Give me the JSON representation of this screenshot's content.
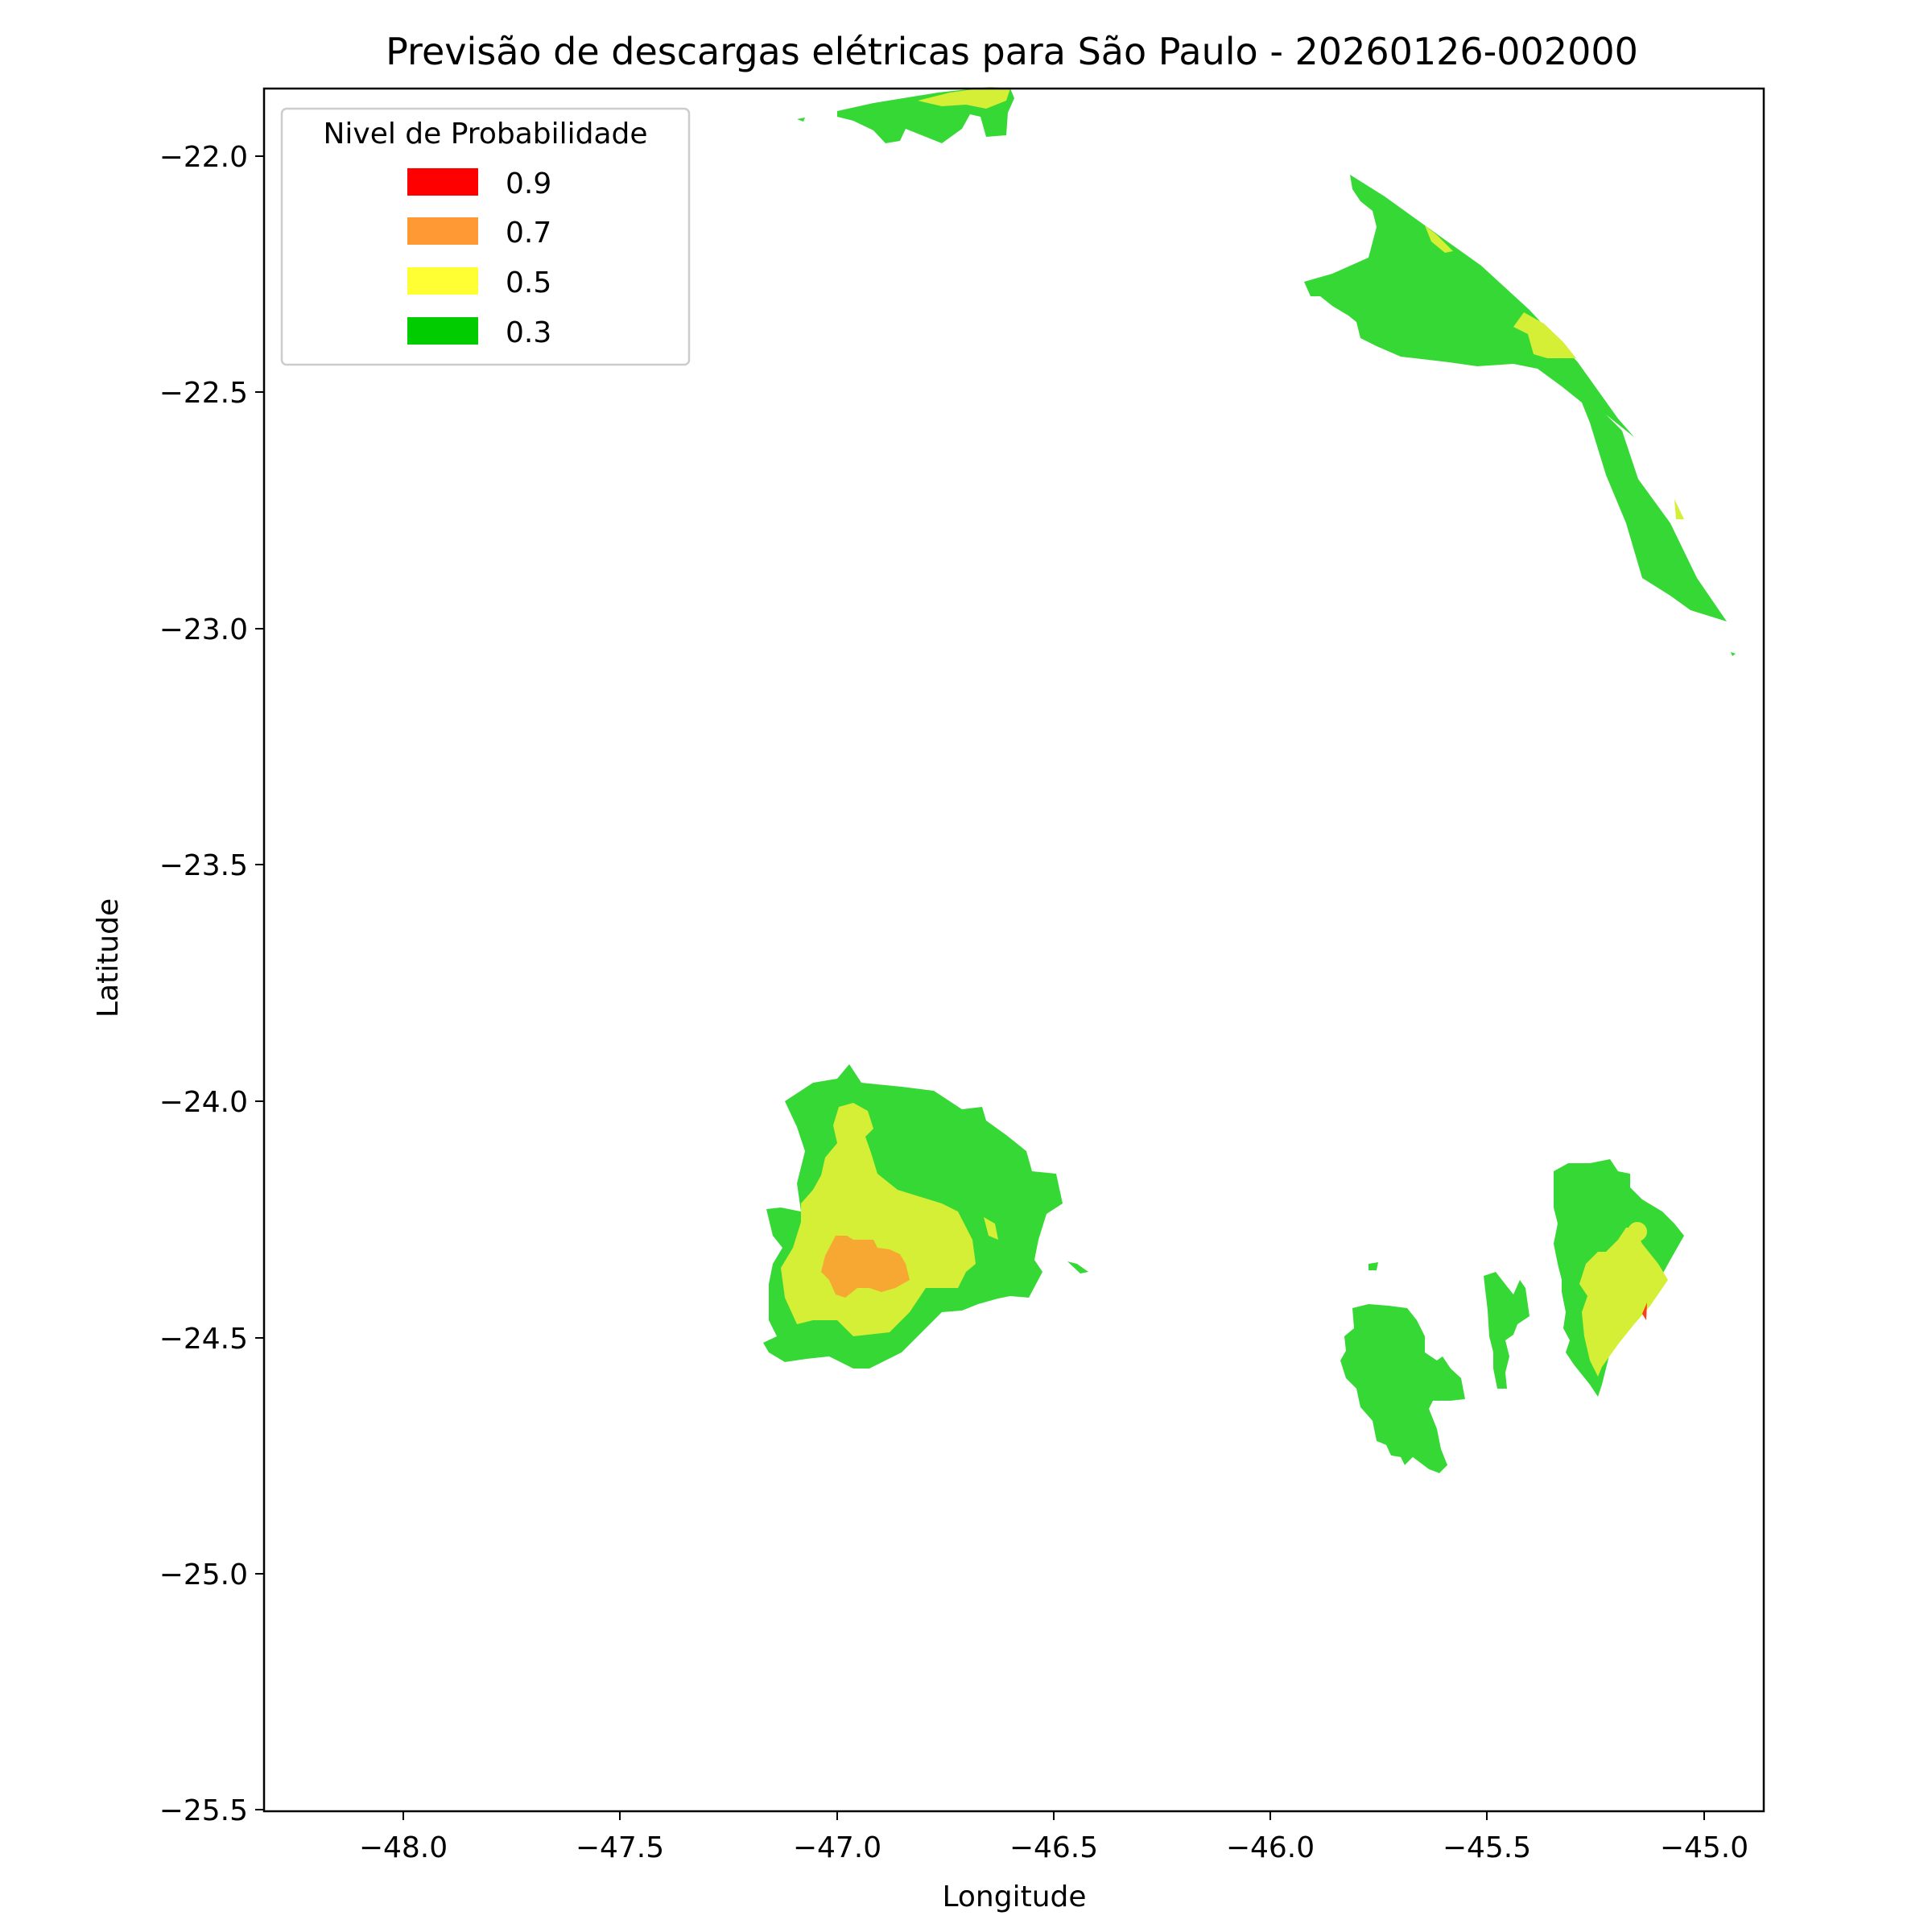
{
  "title": "Previsão de descargas elétricas para São Paulo - 20260126-002000",
  "xlabel": "Longitude",
  "ylabel": "Latitude",
  "x_ticks": [
    "−48.0",
    "−47.5",
    "−47.0",
    "−46.5",
    "−46.0",
    "−45.5",
    "−45.0"
  ],
  "y_ticks": [
    "−22.0",
    "−22.5",
    "−23.0",
    "−23.5",
    "−24.0",
    "−24.5",
    "−25.0",
    "−25.5"
  ],
  "legend": {
    "title": "Nivel de Probabilidade",
    "placement": "upper-left",
    "items": [
      {
        "label": "0.9",
        "color": "#ff0000"
      },
      {
        "label": "0.7",
        "color": "#ff9933"
      },
      {
        "label": "0.5",
        "color": "#ffff33"
      },
      {
        "label": "0.3",
        "color": "#00cc00"
      }
    ]
  },
  "map_extent": {
    "lon_range": [
      -48.32,
      -44.86
    ],
    "lat_range": [
      -25.52,
      -21.86
    ]
  },
  "fill_colors": {
    "green": "#36d836",
    "yellow": "#d4ef36",
    "orange": "#f6a832",
    "red": "#ff3b1a"
  }
}
